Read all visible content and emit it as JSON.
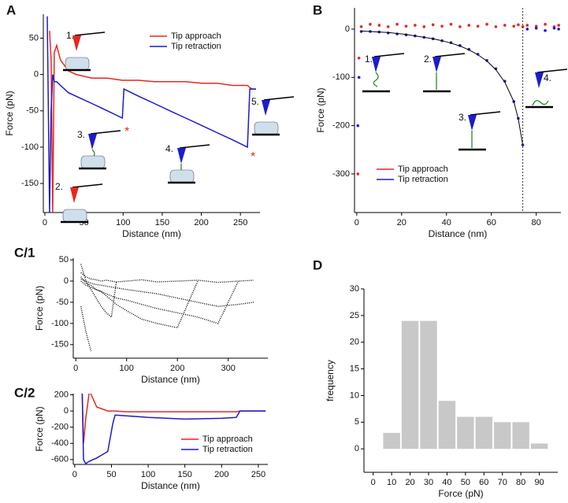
{
  "chart_data": [
    {
      "type": "line",
      "panel": "A",
      "xlabel": "Distance (nm)",
      "ylabel": "Force (pN)",
      "xlim": [
        -2,
        275
      ],
      "ylim": [
        -190,
        83
      ],
      "xticks": [
        0,
        50,
        100,
        150,
        200,
        250
      ],
      "yticks": [
        -150,
        -100,
        -50,
        0,
        50
      ],
      "legend": "upper right",
      "annotations": [
        "1.",
        "2.",
        "3.",
        "4.",
        "5.",
        "*",
        "*"
      ],
      "x": [
        3,
        6,
        8,
        10,
        12,
        15,
        20,
        30,
        40,
        60,
        80,
        99,
        101,
        120,
        140,
        160,
        180,
        200,
        220,
        240,
        259,
        262,
        265,
        270
      ],
      "series": [
        {
          "name": "Tip approach",
          "color": "#e8271f",
          "values": [
            null,
            60,
            20,
            -190,
            30,
            40,
            20,
            5,
            0,
            -5,
            -5,
            -8,
            -8,
            -8,
            -10,
            -10,
            -10,
            -12,
            -12,
            -15,
            -15,
            -18,
            -20,
            -20
          ]
        },
        {
          "name": "Tip retraction",
          "color": "#1c1ccc",
          "values": [
            80,
            -190,
            -50,
            0,
            -10,
            -10,
            -15,
            -25,
            -30,
            -40,
            -50,
            -60,
            -20,
            -30,
            -40,
            -50,
            -60,
            -70,
            -80,
            -90,
            -100,
            -20,
            -20,
            -20
          ]
        }
      ]
    },
    {
      "type": "scatter",
      "panel": "B",
      "xlabel": "Distance (nm)",
      "ylabel": "Force (pN)",
      "xlim": [
        -1,
        91
      ],
      "ylim": [
        -380,
        44
      ],
      "xticks": [
        0,
        20,
        40,
        60,
        80
      ],
      "yticks": [
        -300,
        -200,
        -100,
        0
      ],
      "legend": "lower left",
      "annotations": [
        "1.",
        "2.",
        "3.",
        "4."
      ],
      "x": [
        0.5,
        1,
        2,
        6,
        10,
        14,
        18,
        22,
        26,
        30,
        34,
        38,
        42,
        46,
        50,
        54,
        58,
        62,
        66,
        70,
        72,
        74,
        76,
        80,
        84,
        88,
        90
      ],
      "series": [
        {
          "name": "Tip approach",
          "color": "#e8271f",
          "values": [
            -300,
            -60,
            5,
            10,
            8,
            5,
            10,
            6,
            8,
            5,
            9,
            6,
            10,
            5,
            8,
            6,
            10,
            5,
            8,
            6,
            9,
            5,
            8,
            6,
            10,
            5,
            8
          ]
        },
        {
          "name": "Tip retraction",
          "color": "#1c1ccc",
          "values": [
            -200,
            -100,
            -5,
            -5,
            -6,
            -8,
            -10,
            -12,
            -14,
            -17,
            -20,
            -24,
            -28,
            -34,
            -42,
            -52,
            -65,
            -82,
            -108,
            -150,
            -185,
            -240,
            0,
            2,
            -3,
            2,
            0
          ]
        }
      ],
      "fit": {
        "color": "#000000",
        "values": [
          null,
          null,
          -4,
          -5,
          -6,
          -7,
          -9,
          -11,
          -14,
          -17,
          -20,
          -24,
          -29,
          -35,
          -43,
          -53,
          -66,
          -84,
          -110,
          -150,
          -186,
          -240,
          null,
          null,
          null,
          null,
          null
        ]
      },
      "vline": 74
    },
    {
      "type": "line",
      "panel": "C/1",
      "xlabel": "Distance (nm)",
      "ylabel": "Force (pN)",
      "xlim": [
        -5,
        378
      ],
      "ylim": [
        -182,
        54
      ],
      "xticks": [
        0,
        100,
        200,
        300
      ],
      "yticks": [
        -150,
        -100,
        -50,
        0,
        50
      ],
      "line_style": "dotted",
      "x": [
        10,
        20,
        30,
        40,
        50,
        60,
        70,
        80,
        100,
        130,
        160,
        200,
        240,
        280,
        320,
        350
      ],
      "series": [
        {
          "color": "#000000",
          "values": [
            20,
            10,
            5,
            3,
            0,
            2,
            0,
            -2,
            0,
            3,
            -2,
            0,
            2,
            -3,
            0,
            2
          ]
        },
        {
          "color": "#000000",
          "values": [
            40,
            0,
            -20,
            -40,
            -60,
            -75,
            -85,
            0,
            null,
            null,
            null,
            null,
            null,
            null,
            null,
            null
          ]
        },
        {
          "color": "#000000",
          "values": [
            10,
            -5,
            -10,
            -20,
            -25,
            -35,
            -45,
            -55,
            -70,
            -90,
            -100,
            -110,
            0,
            null,
            null,
            null
          ]
        },
        {
          "color": "#000000",
          "values": [
            0,
            -10,
            -15,
            -20,
            -25,
            -30,
            -35,
            -40,
            -45,
            -55,
            -65,
            -75,
            -85,
            -100,
            0,
            null
          ]
        },
        {
          "color": "#000000",
          "values": [
            -60,
            -120,
            -165,
            null,
            null,
            null,
            null,
            null,
            null,
            null,
            null,
            null,
            null,
            null,
            null,
            null
          ]
        },
        {
          "color": "#000000",
          "values": [
            5,
            0,
            -5,
            -8,
            -10,
            -12,
            -14,
            -16,
            -20,
            -25,
            -30,
            -40,
            -50,
            -60,
            -55,
            -50
          ]
        }
      ]
    },
    {
      "type": "line",
      "panel": "C/2",
      "xlabel": "Distance (nm)",
      "ylabel": "Force (pN)",
      "xlim": [
        -2,
        263
      ],
      "ylim": [
        -660,
        215
      ],
      "xticks": [
        0,
        50,
        100,
        150,
        200,
        250
      ],
      "yticks": [
        -600,
        -400,
        -200,
        0,
        200
      ],
      "legend": "lower right",
      "x": [
        10,
        12,
        15,
        20,
        30,
        45,
        52,
        55,
        70,
        100,
        150,
        200,
        220,
        225,
        260
      ],
      "series": [
        {
          "name": "Tip approach",
          "color": "#e8271f",
          "values": [
            300,
            -400,
            -100,
            250,
            50,
            0,
            0,
            0,
            -10,
            -10,
            -10,
            -10,
            -10,
            0,
            0
          ]
        },
        {
          "name": "Tip retraction",
          "color": "#1c1ccc",
          "values": [
            300,
            -600,
            -650,
            -620,
            -580,
            -500,
            -150,
            -50,
            -60,
            -80,
            -100,
            -90,
            -80,
            0,
            0
          ]
        }
      ]
    },
    {
      "type": "histogram",
      "panel": "D",
      "xlabel": "Force (pN)",
      "ylabel": "frequency",
      "xlim": [
        -5,
        100
      ],
      "ylim": [
        -4.4,
        30
      ],
      "xticks": [
        0,
        10,
        20,
        30,
        40,
        50,
        60,
        70,
        80,
        90
      ],
      "yticks": [
        0,
        5,
        10,
        15,
        20,
        25,
        30
      ],
      "color": "#c8c8c8",
      "bins": [
        5,
        15,
        25,
        35,
        45,
        55,
        65,
        75,
        85,
        95
      ],
      "counts": [
        3,
        24,
        24,
        9,
        6,
        6,
        5,
        5,
        1
      ]
    }
  ]
}
